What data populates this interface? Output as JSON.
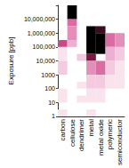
{
  "chart_data": {
    "type": "heatmap",
    "y_label": "Exposure [ppb]",
    "categories": [
      "carbon",
      "cellulose",
      "dendrimer",
      "metal",
      "metal oxide",
      "polymeric",
      "semiconductor"
    ],
    "log": "y",
    "grid": false,
    "ylim": [
      1,
      100000000
    ],
    "yticks": [
      1,
      10,
      100,
      {
        "value": 1000,
        "label": "1000"
      },
      {
        "value": 10000,
        "label": "10,000"
      },
      {
        "value": 100000,
        "label": "100,000"
      },
      {
        "value": 1000000,
        "label": "1,000,000"
      },
      {
        "value": 10000000,
        "label": "10,000,000"
      }
    ],
    "cells": [
      [
        "carbon",
        100000,
        316228,
        6
      ],
      [
        "carbon",
        10000,
        100000,
        1
      ],
      [
        "carbon",
        1000,
        10000,
        2
      ],
      [
        "carbon",
        10,
        100,
        1
      ],
      [
        "carbon",
        1,
        3.16,
        1
      ],
      [
        "cellulose",
        10000000,
        100000000,
        10
      ],
      [
        "cellulose",
        3162278,
        10000000,
        5
      ],
      [
        "cellulose",
        316228,
        3162278,
        4
      ],
      [
        "cellulose",
        100000,
        316228,
        3
      ],
      [
        "dendrimer",
        10000,
        31623,
        2
      ],
      [
        "dendrimer",
        100,
        316,
        1
      ],
      [
        "dendrimer",
        10,
        31.6,
        1
      ],
      [
        "metal",
        31623,
        3162278,
        10
      ],
      [
        "metal",
        10000,
        31623,
        8
      ],
      [
        "metal",
        1000,
        10000,
        4
      ],
      [
        "metal",
        100,
        1000,
        2
      ],
      [
        "metal",
        10,
        100,
        1
      ],
      [
        "metal",
        1,
        3.16,
        1
      ],
      [
        "metal oxide",
        1000000,
        3162278,
        9
      ],
      [
        "metal oxide",
        31623,
        1000000,
        10
      ],
      [
        "metal oxide",
        1000,
        10000,
        5
      ],
      [
        "metal oxide",
        100,
        1000,
        2
      ],
      [
        "metal oxide",
        10,
        100,
        1
      ],
      [
        "polymeric",
        100000,
        1000000,
        5
      ],
      [
        "polymeric",
        10000,
        100000,
        3
      ],
      [
        "polymeric",
        1000,
        10000,
        2
      ],
      [
        "polymeric",
        100,
        1000,
        1
      ],
      [
        "semiconductor",
        100000,
        1000000,
        4
      ],
      [
        "semiconductor",
        10000,
        100000,
        2
      ],
      [
        "semiconductor",
        1000,
        10000,
        1
      ],
      [
        "semiconductor",
        100,
        1000,
        1
      ]
    ]
  }
}
